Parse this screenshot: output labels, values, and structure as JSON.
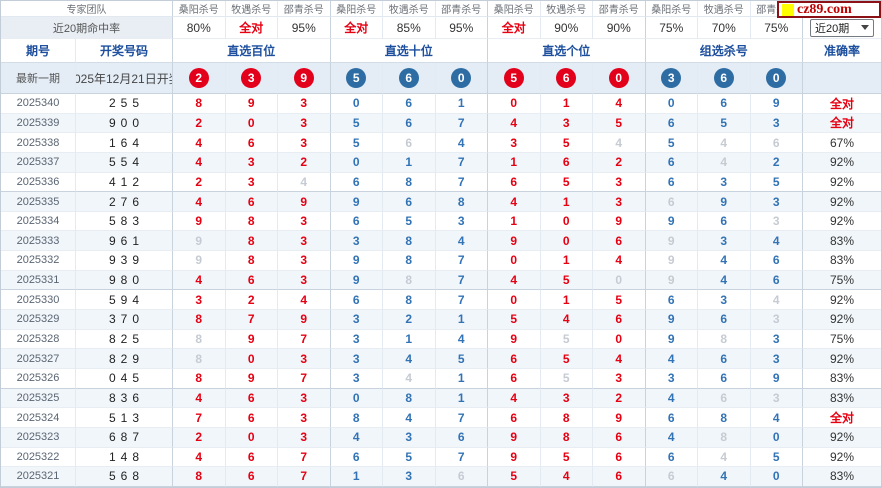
{
  "header": {
    "team_label": "专家团队",
    "hit_rate_label": "近20期命中率",
    "experts": [
      "桑阳杀号",
      "牧遇杀号",
      "邵青杀号",
      "桑阳杀号",
      "牧遇杀号",
      "邵青杀号",
      "桑阳杀号",
      "牧遇杀号",
      "邵青杀号",
      "桑阳杀号",
      "牧遇杀号",
      "邵青杀号"
    ],
    "hit_rates": [
      "80%",
      "全对",
      "95%",
      "全对",
      "85%",
      "95%",
      "全对",
      "90%",
      "90%",
      "75%",
      "70%",
      "75%"
    ],
    "period_col": "期号",
    "result_col": "开奖号码",
    "groups": [
      "直选百位",
      "直选十位",
      "直选个位",
      "组选杀号"
    ],
    "accuracy_col": "准确率",
    "range_select": "近20期",
    "logo_text": "cz89.com"
  },
  "latest": {
    "label": "最新一期",
    "date": "2025年12月21日开奖",
    "circles": [
      {
        "value": "2",
        "tone": "red"
      },
      {
        "value": "3",
        "tone": "red"
      },
      {
        "value": "9",
        "tone": "red"
      },
      {
        "value": "5",
        "tone": "blue"
      },
      {
        "value": "6",
        "tone": "blue"
      },
      {
        "value": "0",
        "tone": "blue"
      },
      {
        "value": "5",
        "tone": "red"
      },
      {
        "value": "6",
        "tone": "red"
      },
      {
        "value": "0",
        "tone": "red"
      },
      {
        "value": "3",
        "tone": "blue"
      },
      {
        "value": "6",
        "tone": "blue"
      },
      {
        "value": "0",
        "tone": "blue"
      }
    ]
  },
  "colors": {
    "red": "#e2001a",
    "blue": "#2e6da4",
    "num_red": "#e60012",
    "num_blue": "#3273b5",
    "num_gray": "#c6cbd3"
  },
  "rows": [
    {
      "period": "2025340",
      "result": "255",
      "preds": [
        [
          "8",
          "r"
        ],
        [
          "9",
          "r"
        ],
        [
          "3",
          "r"
        ],
        [
          "0",
          "b"
        ],
        [
          "6",
          "b"
        ],
        [
          "1",
          "b"
        ],
        [
          "0",
          "r"
        ],
        [
          "1",
          "r"
        ],
        [
          "4",
          "r"
        ],
        [
          "0",
          "b"
        ],
        [
          "6",
          "b"
        ],
        [
          "9",
          "b"
        ]
      ],
      "accuracy": "全对"
    },
    {
      "period": "2025339",
      "result": "900",
      "preds": [
        [
          "2",
          "r"
        ],
        [
          "0",
          "r"
        ],
        [
          "3",
          "r"
        ],
        [
          "5",
          "b"
        ],
        [
          "6",
          "b"
        ],
        [
          "7",
          "b"
        ],
        [
          "4",
          "r"
        ],
        [
          "3",
          "r"
        ],
        [
          "5",
          "r"
        ],
        [
          "6",
          "b"
        ],
        [
          "5",
          "b"
        ],
        [
          "3",
          "b"
        ]
      ],
      "accuracy": "全对"
    },
    {
      "period": "2025338",
      "result": "164",
      "preds": [
        [
          "4",
          "r"
        ],
        [
          "6",
          "r"
        ],
        [
          "3",
          "r"
        ],
        [
          "5",
          "b"
        ],
        [
          "6",
          "g"
        ],
        [
          "4",
          "b"
        ],
        [
          "3",
          "r"
        ],
        [
          "5",
          "r"
        ],
        [
          "4",
          "g"
        ],
        [
          "5",
          "b"
        ],
        [
          "4",
          "g"
        ],
        [
          "6",
          "g"
        ]
      ],
      "accuracy": "67%"
    },
    {
      "period": "2025337",
      "result": "554",
      "preds": [
        [
          "4",
          "r"
        ],
        [
          "3",
          "r"
        ],
        [
          "2",
          "r"
        ],
        [
          "0",
          "b"
        ],
        [
          "1",
          "b"
        ],
        [
          "7",
          "b"
        ],
        [
          "1",
          "r"
        ],
        [
          "6",
          "r"
        ],
        [
          "2",
          "r"
        ],
        [
          "6",
          "b"
        ],
        [
          "4",
          "g"
        ],
        [
          "2",
          "b"
        ]
      ],
      "accuracy": "92%"
    },
    {
      "period": "2025336",
      "result": "412",
      "preds": [
        [
          "2",
          "r"
        ],
        [
          "3",
          "r"
        ],
        [
          "4",
          "g"
        ],
        [
          "6",
          "b"
        ],
        [
          "8",
          "b"
        ],
        [
          "7",
          "b"
        ],
        [
          "6",
          "r"
        ],
        [
          "5",
          "r"
        ],
        [
          "3",
          "r"
        ],
        [
          "6",
          "b"
        ],
        [
          "3",
          "b"
        ],
        [
          "5",
          "b"
        ]
      ],
      "accuracy": "92%"
    },
    {
      "period": "2025335",
      "result": "276",
      "preds": [
        [
          "4",
          "r"
        ],
        [
          "6",
          "r"
        ],
        [
          "9",
          "r"
        ],
        [
          "9",
          "b"
        ],
        [
          "6",
          "b"
        ],
        [
          "8",
          "b"
        ],
        [
          "4",
          "r"
        ],
        [
          "1",
          "r"
        ],
        [
          "3",
          "r"
        ],
        [
          "6",
          "g"
        ],
        [
          "9",
          "b"
        ],
        [
          "3",
          "b"
        ]
      ],
      "accuracy": "92%"
    },
    {
      "period": "2025334",
      "result": "583",
      "preds": [
        [
          "9",
          "r"
        ],
        [
          "8",
          "r"
        ],
        [
          "3",
          "r"
        ],
        [
          "6",
          "b"
        ],
        [
          "5",
          "b"
        ],
        [
          "3",
          "b"
        ],
        [
          "1",
          "r"
        ],
        [
          "0",
          "r"
        ],
        [
          "9",
          "r"
        ],
        [
          "9",
          "b"
        ],
        [
          "6",
          "b"
        ],
        [
          "3",
          "g"
        ]
      ],
      "accuracy": "92%"
    },
    {
      "period": "2025333",
      "result": "961",
      "preds": [
        [
          "9",
          "g"
        ],
        [
          "8",
          "r"
        ],
        [
          "3",
          "r"
        ],
        [
          "3",
          "b"
        ],
        [
          "8",
          "b"
        ],
        [
          "4",
          "b"
        ],
        [
          "9",
          "r"
        ],
        [
          "0",
          "r"
        ],
        [
          "6",
          "r"
        ],
        [
          "9",
          "g"
        ],
        [
          "3",
          "b"
        ],
        [
          "4",
          "b"
        ]
      ],
      "accuracy": "83%"
    },
    {
      "period": "2025332",
      "result": "939",
      "preds": [
        [
          "9",
          "g"
        ],
        [
          "8",
          "r"
        ],
        [
          "3",
          "r"
        ],
        [
          "9",
          "b"
        ],
        [
          "8",
          "b"
        ],
        [
          "7",
          "b"
        ],
        [
          "0",
          "r"
        ],
        [
          "1",
          "r"
        ],
        [
          "4",
          "r"
        ],
        [
          "9",
          "g"
        ],
        [
          "4",
          "b"
        ],
        [
          "6",
          "b"
        ]
      ],
      "accuracy": "83%"
    },
    {
      "period": "2025331",
      "result": "980",
      "preds": [
        [
          "4",
          "r"
        ],
        [
          "6",
          "r"
        ],
        [
          "3",
          "r"
        ],
        [
          "9",
          "b"
        ],
        [
          "8",
          "g"
        ],
        [
          "7",
          "b"
        ],
        [
          "4",
          "r"
        ],
        [
          "5",
          "r"
        ],
        [
          "0",
          "g"
        ],
        [
          "9",
          "g"
        ],
        [
          "4",
          "b"
        ],
        [
          "6",
          "b"
        ]
      ],
      "accuracy": "75%"
    },
    {
      "period": "2025330",
      "result": "594",
      "preds": [
        [
          "3",
          "r"
        ],
        [
          "2",
          "r"
        ],
        [
          "4",
          "r"
        ],
        [
          "6",
          "b"
        ],
        [
          "8",
          "b"
        ],
        [
          "7",
          "b"
        ],
        [
          "0",
          "r"
        ],
        [
          "1",
          "r"
        ],
        [
          "5",
          "r"
        ],
        [
          "6",
          "b"
        ],
        [
          "3",
          "b"
        ],
        [
          "4",
          "g"
        ]
      ],
      "accuracy": "92%"
    },
    {
      "period": "2025329",
      "result": "370",
      "preds": [
        [
          "8",
          "r"
        ],
        [
          "7",
          "r"
        ],
        [
          "9",
          "r"
        ],
        [
          "3",
          "b"
        ],
        [
          "2",
          "b"
        ],
        [
          "1",
          "b"
        ],
        [
          "5",
          "r"
        ],
        [
          "4",
          "r"
        ],
        [
          "6",
          "r"
        ],
        [
          "9",
          "b"
        ],
        [
          "6",
          "b"
        ],
        [
          "3",
          "g"
        ]
      ],
      "accuracy": "92%"
    },
    {
      "period": "2025328",
      "result": "825",
      "preds": [
        [
          "8",
          "g"
        ],
        [
          "9",
          "r"
        ],
        [
          "7",
          "r"
        ],
        [
          "3",
          "b"
        ],
        [
          "1",
          "b"
        ],
        [
          "4",
          "b"
        ],
        [
          "9",
          "r"
        ],
        [
          "5",
          "g"
        ],
        [
          "0",
          "r"
        ],
        [
          "9",
          "b"
        ],
        [
          "8",
          "g"
        ],
        [
          "3",
          "b"
        ]
      ],
      "accuracy": "75%"
    },
    {
      "period": "2025327",
      "result": "829",
      "preds": [
        [
          "8",
          "g"
        ],
        [
          "0",
          "r"
        ],
        [
          "3",
          "r"
        ],
        [
          "3",
          "b"
        ],
        [
          "4",
          "b"
        ],
        [
          "5",
          "b"
        ],
        [
          "6",
          "r"
        ],
        [
          "5",
          "r"
        ],
        [
          "4",
          "r"
        ],
        [
          "4",
          "b"
        ],
        [
          "6",
          "b"
        ],
        [
          "3",
          "b"
        ]
      ],
      "accuracy": "92%"
    },
    {
      "period": "2025326",
      "result": "045",
      "preds": [
        [
          "8",
          "r"
        ],
        [
          "9",
          "r"
        ],
        [
          "7",
          "r"
        ],
        [
          "3",
          "b"
        ],
        [
          "4",
          "g"
        ],
        [
          "1",
          "b"
        ],
        [
          "6",
          "r"
        ],
        [
          "5",
          "g"
        ],
        [
          "3",
          "r"
        ],
        [
          "3",
          "b"
        ],
        [
          "6",
          "b"
        ],
        [
          "9",
          "b"
        ]
      ],
      "accuracy": "83%"
    },
    {
      "period": "2025325",
      "result": "836",
      "preds": [
        [
          "4",
          "r"
        ],
        [
          "6",
          "r"
        ],
        [
          "3",
          "r"
        ],
        [
          "0",
          "b"
        ],
        [
          "8",
          "b"
        ],
        [
          "1",
          "b"
        ],
        [
          "4",
          "r"
        ],
        [
          "3",
          "r"
        ],
        [
          "2",
          "r"
        ],
        [
          "4",
          "b"
        ],
        [
          "6",
          "g"
        ],
        [
          "3",
          "g"
        ]
      ],
      "accuracy": "83%"
    },
    {
      "period": "2025324",
      "result": "513",
      "preds": [
        [
          "7",
          "r"
        ],
        [
          "6",
          "r"
        ],
        [
          "3",
          "r"
        ],
        [
          "8",
          "b"
        ],
        [
          "4",
          "b"
        ],
        [
          "7",
          "b"
        ],
        [
          "6",
          "r"
        ],
        [
          "8",
          "r"
        ],
        [
          "9",
          "r"
        ],
        [
          "6",
          "b"
        ],
        [
          "8",
          "b"
        ],
        [
          "4",
          "b"
        ]
      ],
      "accuracy": "全对"
    },
    {
      "period": "2025323",
      "result": "687",
      "preds": [
        [
          "2",
          "r"
        ],
        [
          "0",
          "r"
        ],
        [
          "3",
          "r"
        ],
        [
          "4",
          "b"
        ],
        [
          "3",
          "b"
        ],
        [
          "6",
          "b"
        ],
        [
          "9",
          "r"
        ],
        [
          "8",
          "r"
        ],
        [
          "6",
          "r"
        ],
        [
          "4",
          "b"
        ],
        [
          "8",
          "g"
        ],
        [
          "0",
          "b"
        ]
      ],
      "accuracy": "92%"
    },
    {
      "period": "2025322",
      "result": "148",
      "preds": [
        [
          "4",
          "r"
        ],
        [
          "6",
          "r"
        ],
        [
          "7",
          "r"
        ],
        [
          "6",
          "b"
        ],
        [
          "5",
          "b"
        ],
        [
          "7",
          "b"
        ],
        [
          "9",
          "r"
        ],
        [
          "5",
          "r"
        ],
        [
          "6",
          "r"
        ],
        [
          "6",
          "b"
        ],
        [
          "4",
          "g"
        ],
        [
          "5",
          "b"
        ]
      ],
      "accuracy": "92%"
    },
    {
      "period": "2025321",
      "result": "568",
      "preds": [
        [
          "8",
          "r"
        ],
        [
          "6",
          "r"
        ],
        [
          "7",
          "r"
        ],
        [
          "1",
          "b"
        ],
        [
          "3",
          "b"
        ],
        [
          "6",
          "g"
        ],
        [
          "5",
          "r"
        ],
        [
          "4",
          "r"
        ],
        [
          "6",
          "r"
        ],
        [
          "6",
          "g"
        ],
        [
          "4",
          "b"
        ],
        [
          "0",
          "b"
        ]
      ],
      "accuracy": "83%"
    }
  ]
}
